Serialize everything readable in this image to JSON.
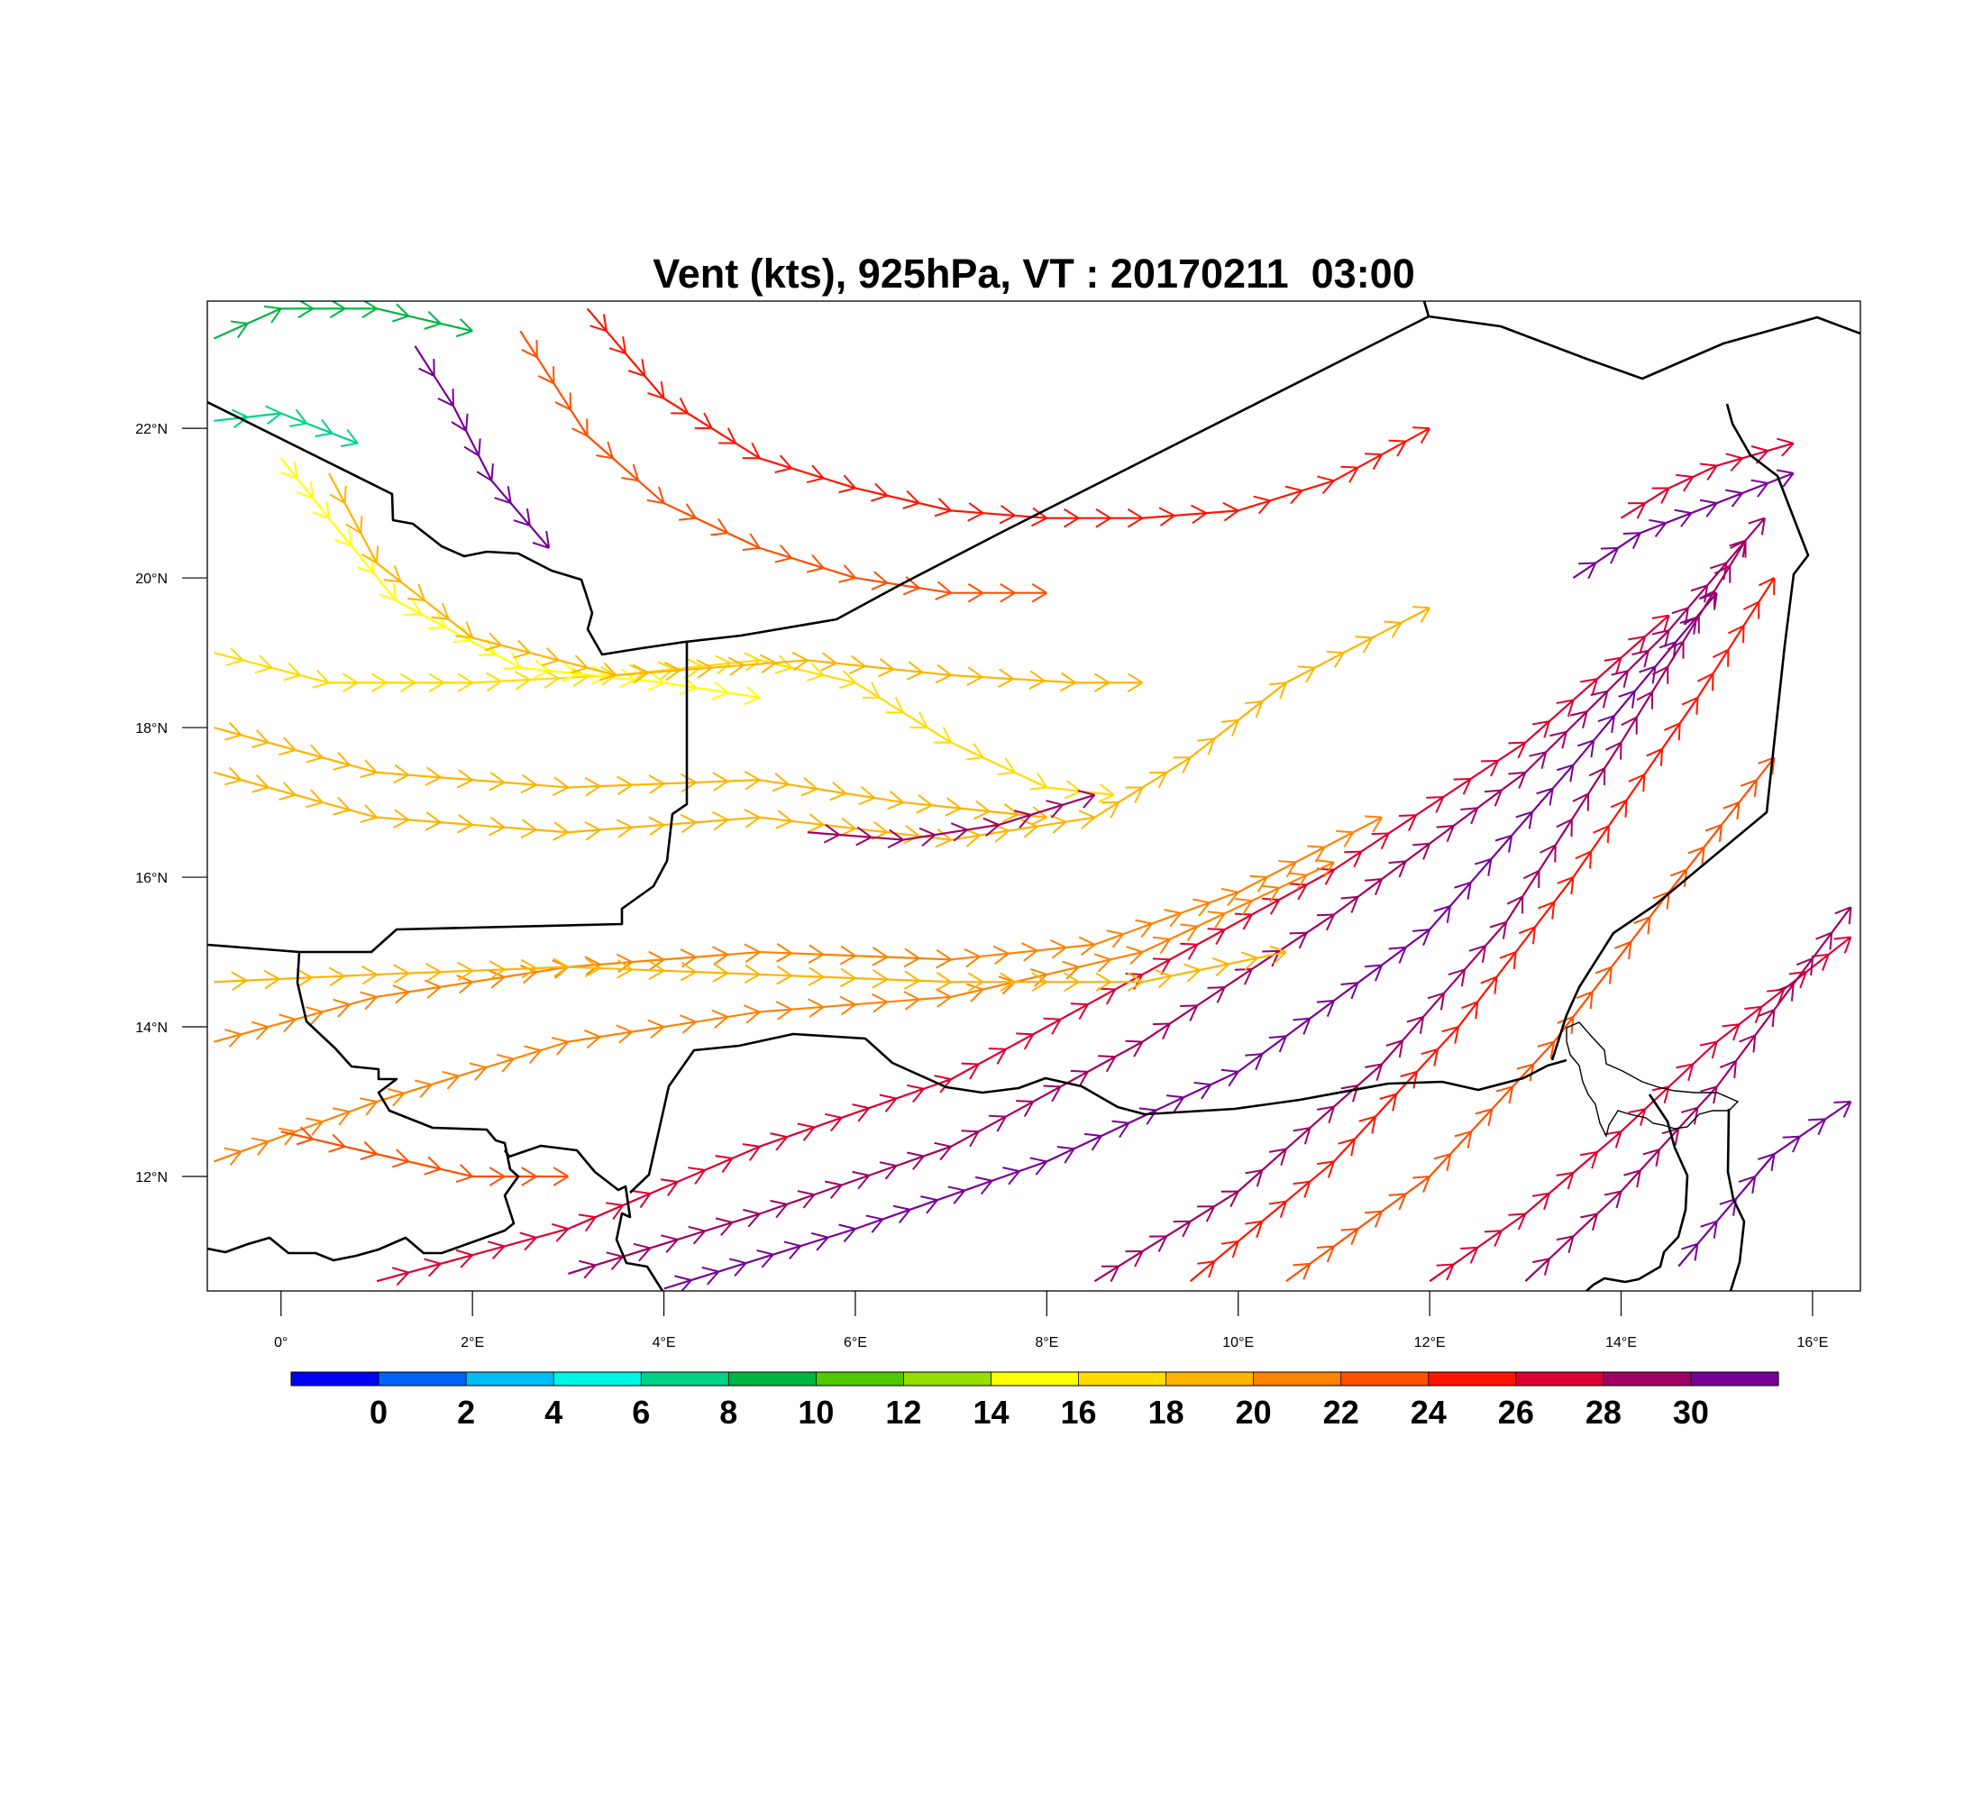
{
  "title": "Vent (kts), 925hPa, VT : 20170211  03:00",
  "map": {
    "lon_range": [
      -0.77,
      16.5
    ],
    "lat_range": [
      10.47,
      23.7
    ],
    "y_axis": {
      "ticks": [
        12,
        14,
        16,
        18,
        20,
        22
      ],
      "labels": [
        "12°N",
        "14°N",
        "16°N",
        "18°N",
        "20°N",
        "22°N"
      ]
    },
    "x_axis": {
      "ticks": [
        0,
        2,
        4,
        6,
        8,
        10,
        12,
        14,
        16
      ],
      "labels": [
        "0°",
        "2°E",
        "4°E",
        "6°E",
        "8°E",
        "10°E",
        "12°E",
        "14°E",
        "16°E"
      ]
    },
    "border_color": "#000000",
    "streamlines": [
      {
        "speed": 26,
        "points": [
          [
            1.0,
            10.6
          ],
          [
            3.0,
            11.3
          ],
          [
            5.0,
            12.4
          ],
          [
            7.0,
            13.3
          ],
          [
            9.0,
            14.7
          ],
          [
            11.0,
            16.1
          ],
          [
            13.0,
            17.8
          ],
          [
            14.5,
            19.5
          ]
        ]
      },
      {
        "speed": 29,
        "points": [
          [
            3.0,
            10.7
          ],
          [
            5.0,
            11.5
          ],
          [
            7.0,
            12.4
          ],
          [
            9.0,
            13.8
          ],
          [
            11.0,
            15.5
          ],
          [
            13.0,
            17.4
          ],
          [
            14.5,
            19.3
          ],
          [
            15.5,
            20.8
          ]
        ]
      },
      {
        "speed": 30,
        "points": [
          [
            4.0,
            10.5
          ],
          [
            6.0,
            11.3
          ],
          [
            8.0,
            12.2
          ],
          [
            10.0,
            13.4
          ],
          [
            12.0,
            15.3
          ],
          [
            13.5,
            17.5
          ],
          [
            15.0,
            19.8
          ]
        ]
      },
      {
        "speed": 29,
        "points": [
          [
            8.5,
            10.6
          ],
          [
            10.0,
            11.8
          ],
          [
            11.5,
            13.5
          ],
          [
            12.8,
            15.4
          ],
          [
            14.0,
            17.8
          ],
          [
            15.3,
            20.5
          ]
        ]
      },
      {
        "speed": 25,
        "points": [
          [
            9.5,
            10.6
          ],
          [
            11.0,
            12.2
          ],
          [
            12.3,
            14.0
          ],
          [
            13.5,
            16.0
          ],
          [
            14.8,
            18.4
          ],
          [
            15.6,
            20.0
          ]
        ]
      },
      {
        "speed": 23,
        "points": [
          [
            10.5,
            10.6
          ],
          [
            12.0,
            12.0
          ],
          [
            13.3,
            13.8
          ],
          [
            14.5,
            15.8
          ],
          [
            15.6,
            17.6
          ]
        ]
      },
      {
        "speed": 26,
        "points": [
          [
            12.0,
            10.6
          ],
          [
            13.0,
            11.5
          ],
          [
            14.0,
            12.6
          ],
          [
            15.0,
            13.8
          ],
          [
            16.4,
            15.2
          ]
        ]
      },
      {
        "speed": 28,
        "points": [
          [
            13.0,
            10.6
          ],
          [
            14.0,
            11.8
          ],
          [
            15.0,
            13.2
          ],
          [
            16.4,
            15.6
          ]
        ]
      },
      {
        "speed": 30,
        "points": [
          [
            14.6,
            10.8
          ],
          [
            15.6,
            12.3
          ],
          [
            16.4,
            13.0
          ]
        ]
      },
      {
        "speed": 20,
        "points": [
          [
            -0.7,
            13.8
          ],
          [
            1.0,
            14.4
          ],
          [
            3.0,
            14.8
          ],
          [
            5.0,
            15.0
          ],
          [
            7.0,
            14.9
          ],
          [
            8.5,
            15.1
          ],
          [
            10.0,
            15.8
          ],
          [
            11.5,
            16.8
          ]
        ]
      },
      {
        "speed": 21,
        "points": [
          [
            -0.7,
            12.2
          ],
          [
            1.0,
            13.0
          ],
          [
            3.0,
            13.8
          ],
          [
            5.0,
            14.2
          ],
          [
            7.0,
            14.4
          ],
          [
            9.0,
            15.0
          ],
          [
            11.0,
            16.2
          ]
        ]
      },
      {
        "speed": 18,
        "points": [
          [
            -0.7,
            14.6
          ],
          [
            1.0,
            14.7
          ],
          [
            3.0,
            14.8
          ],
          [
            5.0,
            14.7
          ],
          [
            7.0,
            14.6
          ],
          [
            9.0,
            14.6
          ],
          [
            10.5,
            15.0
          ]
        ]
      },
      {
        "speed": 18,
        "points": [
          [
            -0.7,
            17.4
          ],
          [
            1.0,
            16.8
          ],
          [
            3.0,
            16.6
          ],
          [
            5.0,
            16.8
          ],
          [
            7.0,
            16.5
          ],
          [
            8.5,
            16.8
          ],
          [
            9.5,
            17.6
          ],
          [
            10.5,
            18.6
          ],
          [
            12.0,
            19.6
          ]
        ]
      },
      {
        "speed": 19,
        "points": [
          [
            -0.7,
            18.0
          ],
          [
            1.0,
            17.4
          ],
          [
            3.0,
            17.2
          ],
          [
            5.0,
            17.3
          ],
          [
            6.5,
            17.0
          ],
          [
            8.0,
            16.8
          ]
        ]
      },
      {
        "speed": 17,
        "points": [
          [
            -0.7,
            19.0
          ],
          [
            0.5,
            18.6
          ],
          [
            2.0,
            18.6
          ],
          [
            3.5,
            18.7
          ],
          [
            5.0,
            18.9
          ],
          [
            6.0,
            18.6
          ],
          [
            7.0,
            17.8
          ],
          [
            8.0,
            17.2
          ],
          [
            8.7,
            17.1
          ]
        ]
      },
      {
        "speed": 15,
        "points": [
          [
            0.0,
            21.6
          ],
          [
            0.5,
            20.8
          ],
          [
            1.2,
            19.7
          ],
          [
            2.5,
            18.8
          ],
          [
            4.0,
            18.6
          ],
          [
            5.0,
            18.4
          ]
        ]
      },
      {
        "speed": 19,
        "points": [
          [
            0.5,
            21.4
          ],
          [
            1.0,
            20.2
          ],
          [
            2.0,
            19.2
          ],
          [
            3.5,
            18.7
          ],
          [
            5.5,
            18.9
          ],
          [
            7.0,
            18.7
          ],
          [
            8.3,
            18.6
          ],
          [
            9.0,
            18.6
          ]
        ]
      },
      {
        "speed": 30,
        "points": [
          [
            1.4,
            23.1
          ],
          [
            1.8,
            22.3
          ],
          [
            2.2,
            21.3
          ],
          [
            2.8,
            20.4
          ]
        ]
      },
      {
        "speed": 25,
        "points": [
          [
            3.2,
            23.6
          ],
          [
            4.0,
            22.4
          ],
          [
            5.0,
            21.6
          ],
          [
            6.0,
            21.2
          ],
          [
            7.0,
            20.9
          ],
          [
            8.0,
            20.8
          ],
          [
            9.0,
            20.8
          ],
          [
            10.0,
            20.9
          ],
          [
            11.0,
            21.3
          ],
          [
            12.0,
            22.0
          ]
        ]
      },
      {
        "speed": 23,
        "points": [
          [
            2.5,
            23.3
          ],
          [
            3.2,
            21.9
          ],
          [
            4.0,
            21.0
          ],
          [
            5.0,
            20.4
          ],
          [
            6.0,
            20.0
          ],
          [
            7.0,
            19.8
          ],
          [
            8.0,
            19.8
          ]
        ]
      },
      {
        "speed": 8,
        "points": [
          [
            -0.7,
            23.2
          ],
          [
            0.0,
            23.6
          ],
          [
            1.0,
            23.6
          ],
          [
            2.0,
            23.3
          ]
        ]
      },
      {
        "speed": 6,
        "points": [
          [
            -0.7,
            22.1
          ],
          [
            0.0,
            22.2
          ],
          [
            0.8,
            21.8
          ]
        ]
      },
      {
        "speed": 29,
        "points": [
          [
            5.5,
            16.6
          ],
          [
            6.5,
            16.5
          ],
          [
            7.5,
            16.7
          ],
          [
            8.5,
            17.1
          ]
        ]
      },
      {
        "speed": 22,
        "points": [
          [
            0.0,
            12.6
          ],
          [
            1.0,
            12.3
          ],
          [
            2.0,
            12.0
          ],
          [
            3.0,
            12.0
          ]
        ]
      },
      {
        "speed": 27,
        "points": [
          [
            14.0,
            20.8
          ],
          [
            14.5,
            21.2
          ],
          [
            15.0,
            21.5
          ],
          [
            15.8,
            21.8
          ]
        ]
      },
      {
        "speed": 30,
        "points": [
          [
            13.5,
            20.0
          ],
          [
            14.2,
            20.6
          ],
          [
            15.0,
            21.0
          ],
          [
            15.8,
            21.4
          ]
        ]
      }
    ]
  },
  "colorbar": {
    "colors": [
      "#0000f5",
      "#0064f5",
      "#00bef5",
      "#00f5e6",
      "#00d288",
      "#00b441",
      "#50c800",
      "#96de00",
      "#ffff00",
      "#ffdc00",
      "#ffb400",
      "#ff8200",
      "#ff5000",
      "#ff1400",
      "#dc0032",
      "#a00064",
      "#780096"
    ],
    "labels": [
      "0",
      "2",
      "4",
      "6",
      "8",
      "10",
      "12",
      "14",
      "16",
      "18",
      "20",
      "22",
      "24",
      "26",
      "28",
      "30"
    ]
  }
}
